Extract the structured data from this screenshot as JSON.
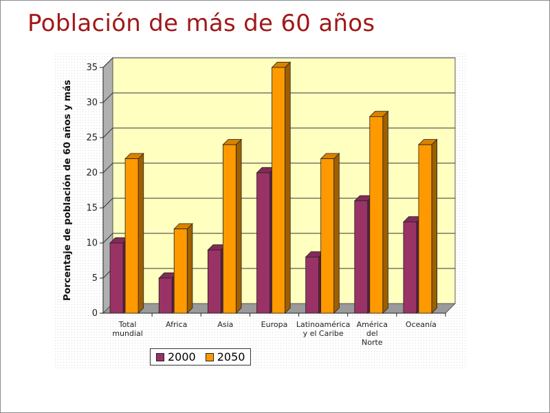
{
  "slide": {
    "title": "Población de más de 60 años"
  },
  "chart_data": {
    "type": "bar",
    "categories": [
      [
        "Total",
        "mundial"
      ],
      [
        "Africa"
      ],
      [
        "Asia"
      ],
      [
        "Europa"
      ],
      [
        "Latinoamérica",
        "y el Caribe"
      ],
      [
        "América",
        "del",
        "Norte"
      ],
      [
        "Oceanía"
      ]
    ],
    "series": [
      {
        "name": "2000",
        "color": "#993366",
        "values": [
          10,
          5,
          9,
          20,
          8,
          16,
          13
        ]
      },
      {
        "name": "2050",
        "color": "#ff9900",
        "values": [
          22,
          12,
          24,
          35,
          22,
          28,
          24
        ]
      }
    ],
    "ylabel": "Porcentaje de población de 60 años y más",
    "ylim": [
      0,
      35
    ],
    "yticks": [
      0,
      5,
      10,
      15,
      20,
      25,
      30,
      35
    ],
    "grid": true,
    "legend_position": "bottom",
    "plot_background": "#ffffc0",
    "three_d": true
  }
}
